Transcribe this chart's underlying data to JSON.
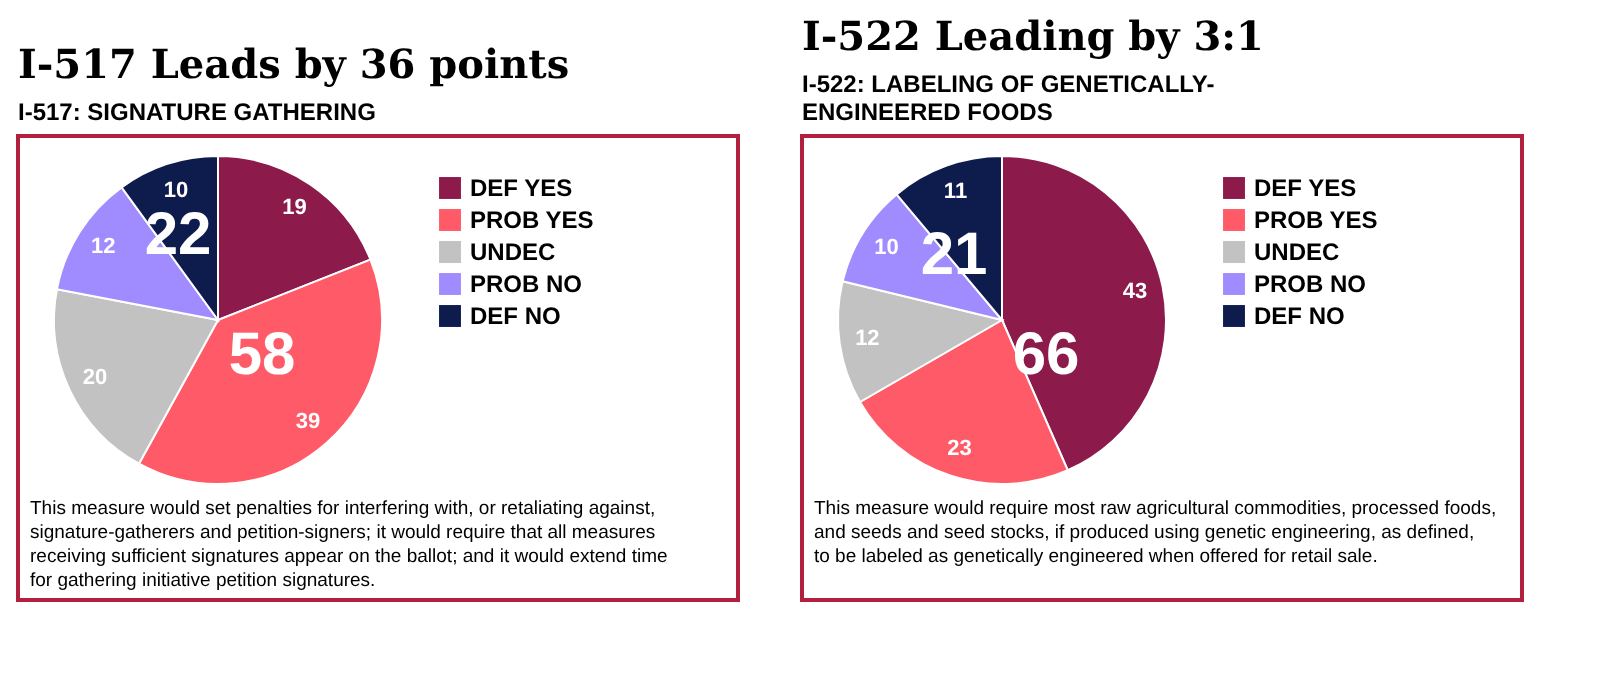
{
  "chart_data": [
    {
      "type": "pie",
      "title": "I-517 Leads by 36 points",
      "subtitle": "I-517: SIGNATURE GATHERING",
      "categories": [
        "DEF YES",
        "PROB YES",
        "UNDEC",
        "PROB NO",
        "DEF NO"
      ],
      "values": [
        19,
        39,
        20,
        12,
        10
      ],
      "colors": [
        "#8c1a4b",
        "#ff5a67",
        "#c2c2c2",
        "#a08cff",
        "#0e1b4d"
      ],
      "data_labels": true,
      "legend": "right",
      "annotations": [
        "58",
        "22",
        "This measure would set penalties for interfering with, or retaliating against, signature-gatherers and petition-signers; it would require that all measures receiving sufficient signatures appear on the ballot; and it would extend time for gathering initiative petition signatures."
      ]
    },
    {
      "type": "pie",
      "title": "I-522 Leading by 3:1",
      "subtitle": "I-522: LABELING OF GENETICALLY-ENGINEERED FOODS",
      "categories": [
        "DEF YES",
        "PROB YES",
        "UNDEC",
        "PROB NO",
        "DEF NO"
      ],
      "values": [
        43,
        23,
        12,
        10,
        11
      ],
      "colors": [
        "#8c1a4b",
        "#ff5a67",
        "#c2c2c2",
        "#a08cff",
        "#0e1b4d"
      ],
      "data_labels": true,
      "legend": "right",
      "annotations": [
        "66",
        "21",
        "This measure would require most raw agricultural commodities, processed foods, and seeds and seed stocks, if produced using genetic engineering, as defined, to be labeled as genetically engineered when offered for retail sale."
      ]
    }
  ]
}
